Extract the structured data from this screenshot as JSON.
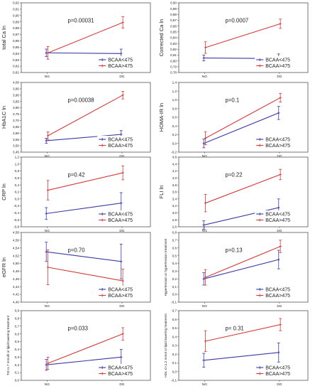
{
  "colors": {
    "blue": "#3a3aa8",
    "red": "#d43a3a",
    "grid": "#c7c7c7",
    "axis": "#555555",
    "text": "#222222"
  },
  "legend_labels": [
    "BCAA<475",
    "BCAA>475"
  ],
  "chart_data": [
    {
      "type": "line",
      "ylabel": "total Ca ln",
      "p_label": "p=0.00031",
      "x": [
        "NG",
        "DG"
      ],
      "ylim": [
        0.81,
        0.92
      ],
      "yticks": [
        0.81,
        0.82,
        0.83,
        0.84,
        0.85,
        0.86,
        0.87,
        0.88,
        0.89,
        0.9,
        0.91,
        0.92
      ],
      "ytick_labels": [
        "0,81",
        "0,82",
        "0,83",
        "0,84",
        "0,85",
        "0,86",
        "0,87",
        "0,88",
        "0,89",
        "0,90",
        "0,91",
        "0,92"
      ],
      "grid": false,
      "legend": "bottom-right",
      "series": [
        {
          "name": "BCAA<475",
          "values": [
            0.841,
            0.84
          ],
          "err": [
            0.006,
            0.007
          ]
        },
        {
          "name": "BCAA>475",
          "values": [
            0.841,
            0.889
          ],
          "err": [
            0.01,
            0.009
          ]
        }
      ]
    },
    {
      "type": "line",
      "ylabel": "Corrected Ca ln",
      "p_label": "p=0.0007",
      "x": [
        "NG",
        "DG"
      ],
      "ylim": [
        0.78,
        0.9
      ],
      "yticks": [
        0.78,
        0.79,
        0.8,
        0.81,
        0.82,
        0.83,
        0.84,
        0.85,
        0.86,
        0.87,
        0.88,
        0.89,
        0.9
      ],
      "ytick_labels": [
        "0,78",
        "0,79",
        "0,80",
        "0,81",
        "0,82",
        "0,83",
        "0,84",
        "0,85",
        "0,86",
        "0,87",
        "0,88",
        "0,89",
        "0,90"
      ],
      "grid": false,
      "legend": "bottom-right",
      "series": [
        {
          "name": "BCAA<475",
          "values": [
            0.805,
            0.804
          ],
          "err": [
            0.005,
            0.008
          ]
        },
        {
          "name": "BCAA>475",
          "values": [
            0.823,
            0.864
          ],
          "err": [
            0.01,
            0.008
          ]
        }
      ]
    },
    {
      "type": "line",
      "ylabel": "HbA1C ln",
      "p_label": "p=0.00038",
      "x": [
        "NG",
        "DG"
      ],
      "ylim": [
        3.45,
        4.0
      ],
      "yticks": [
        3.45,
        3.5,
        3.55,
        3.6,
        3.65,
        3.7,
        3.75,
        3.8,
        3.85,
        3.9,
        3.95,
        4.0
      ],
      "ytick_labels": [
        "3,45",
        "3,50",
        "3,55",
        "3,60",
        "3,65",
        "3,70",
        "3,75",
        "3,80",
        "3,85",
        "3,90",
        "3,95",
        "4,00"
      ],
      "grid": false,
      "legend": "bottom-right",
      "series": [
        {
          "name": "BCAA<475",
          "values": [
            3.54,
            3.59
          ],
          "err": [
            0.02,
            0.03
          ]
        },
        {
          "name": "BCAA>475",
          "values": [
            3.58,
            3.9
          ],
          "err": [
            0.03,
            0.03
          ]
        }
      ]
    },
    {
      "type": "line",
      "ylabel": "HOMA-IR ln",
      "p_label": "p=0.1",
      "x": [
        "NG",
        "DG"
      ],
      "ylim": [
        -0.2,
        1.4
      ],
      "yticks": [
        -0.2,
        0.0,
        0.2,
        0.4,
        0.6,
        0.8,
        1.0,
        1.2,
        1.4
      ],
      "ytick_labels": [
        "-0,2",
        "0,0",
        "0,2",
        "0,4",
        "0,6",
        "0,8",
        "1,0",
        "1,2",
        "1,4"
      ],
      "grid": false,
      "legend": "bottom-right",
      "series": [
        {
          "name": "BCAA<475",
          "values": [
            0.0,
            0.7
          ],
          "err": [
            0.1,
            0.15
          ]
        },
        {
          "name": "BCAA>475",
          "values": [
            0.12,
            1.05
          ],
          "err": [
            0.15,
            0.1
          ]
        }
      ]
    },
    {
      "type": "line",
      "ylabel": "CRP ln",
      "p_label": "p=0.42",
      "x": [
        "NG",
        "DG"
      ],
      "ylim": [
        -0.8,
        1.2
      ],
      "yticks": [
        -0.8,
        -0.6,
        -0.4,
        -0.2,
        0.0,
        0.2,
        0.4,
        0.6,
        0.8,
        1.0,
        1.2
      ],
      "ytick_labels": [
        "-0,8",
        "-0,6",
        "-0,4",
        "-0,2",
        "0,0",
        "0,2",
        "0,4",
        "0,6",
        "0,8",
        "1,0",
        "1,2"
      ],
      "grid": false,
      "legend": "bottom-right",
      "series": [
        {
          "name": "BCAA<475",
          "values": [
            -0.42,
            -0.12
          ],
          "err": [
            0.17,
            0.3
          ]
        },
        {
          "name": "BCAA>475",
          "values": [
            0.25,
            0.75
          ],
          "err": [
            0.28,
            0.2
          ]
        }
      ]
    },
    {
      "type": "line",
      "ylabel": "FLI ln",
      "p_label": "p=0.22",
      "x": [
        "NG",
        "DG"
      ],
      "ylim": [
        2.6,
        4.6
      ],
      "yticks": [
        2.6,
        2.8,
        3.0,
        3.2,
        3.4,
        3.6,
        3.8,
        4.0,
        4.2,
        4.4,
        4.6
      ],
      "ytick_labels": [
        "2,6",
        "2,8",
        "3,0",
        "3,2",
        "3,4",
        "3,6",
        "3,8",
        "4,0",
        "4,2",
        "4,4",
        "4,6"
      ],
      "grid": false,
      "legend": "bottom-right",
      "series": [
        {
          "name": "BCAA<475",
          "values": [
            2.65,
            3.15
          ],
          "err": [
            0.12,
            0.25
          ]
        },
        {
          "name": "BCAA>475",
          "values": [
            3.28,
            4.1
          ],
          "err": [
            0.25,
            0.15
          ]
        }
      ]
    },
    {
      "type": "line",
      "ylabel": "eGFR ln",
      "p_label": "p=0.70",
      "x": [
        "NG",
        "DG"
      ],
      "ylim": [
        4.4,
        4.58
      ],
      "yticks": [
        4.4,
        4.42,
        4.44,
        4.46,
        4.48,
        4.5,
        4.52,
        4.54,
        4.56,
        4.58
      ],
      "ytick_labels": [
        "4,40",
        "4,42",
        "4,44",
        "4,46",
        "4,48",
        "4,50",
        "4,52",
        "4,54",
        "4,56",
        "4,58"
      ],
      "grid": false,
      "legend": "bottom-right",
      "series": [
        {
          "name": "BCAA<475",
          "values": [
            4.53,
            4.505
          ],
          "err": [
            0.025,
            0.045
          ]
        },
        {
          "name": "BCAA>475",
          "values": [
            4.49,
            4.455
          ],
          "err": [
            0.045,
            0.03
          ]
        }
      ]
    },
    {
      "type": "line",
      "ylabel": "Hypertension or hypertension treatment",
      "p_label": "p=0.13",
      "x": [
        "NG",
        "DG"
      ],
      "ylim": [
        -0.1,
        0.8
      ],
      "yticks": [
        -0.1,
        0.0,
        0.1,
        0.2,
        0.3,
        0.4,
        0.5,
        0.6,
        0.7,
        0.8
      ],
      "ytick_labels": [
        "-0,1",
        "0,0",
        "0,1",
        "0,2",
        "0,3",
        "0,4",
        "0,5",
        "0,6",
        "0,7",
        "0,8"
      ],
      "grid": false,
      "legend": "bottom-right",
      "series": [
        {
          "name": "BCAA<475",
          "values": [
            0.2,
            0.45
          ],
          "err": [
            0.08,
            0.12
          ]
        },
        {
          "name": "BCAA>475",
          "values": [
            0.22,
            0.62
          ],
          "err": [
            0.1,
            0.08
          ]
        }
      ]
    },
    {
      "type": "line",
      "ylabel": "TG>1.7 mmol/l or lipid lowering treatment",
      "p_label": "p=0.033",
      "x": [
        "NG",
        "DG"
      ],
      "ylim": [
        0.0,
        0.9
      ],
      "yticks": [
        0.0,
        0.1,
        0.2,
        0.3,
        0.4,
        0.5,
        0.6,
        0.7,
        0.8,
        0.9
      ],
      "ytick_labels": [
        "0,0",
        "0,1",
        "0,2",
        "0,3",
        "0,4",
        "0,5",
        "0,6",
        "0,7",
        "0,8",
        "0,9"
      ],
      "grid": false,
      "legend": "bottom-right",
      "series": [
        {
          "name": "BCAA<475",
          "values": [
            0.2,
            0.3
          ],
          "err": [
            0.07,
            0.1
          ]
        },
        {
          "name": "BCAA>475",
          "values": [
            0.22,
            0.6
          ],
          "err": [
            0.08,
            0.08
          ]
        }
      ]
    },
    {
      "type": "line",
      "ylabel": "HDL-C<1.2 mmol or lipid lowering treatment",
      "p_label": "p= 0.31",
      "x": [
        "NG",
        "DG"
      ],
      "ylim": [
        -0.1,
        0.7
      ],
      "yticks": [
        -0.1,
        0.0,
        0.1,
        0.2,
        0.3,
        0.4,
        0.5,
        0.6,
        0.7
      ],
      "ytick_labels": [
        "-0,1",
        "0,0",
        "0,1",
        "0,2",
        "0,3",
        "0,4",
        "0,5",
        "0,6",
        "0,7"
      ],
      "grid": false,
      "legend": "bottom-right",
      "series": [
        {
          "name": "BCAA<475",
          "values": [
            0.13,
            0.22
          ],
          "err": [
            0.08,
            0.11
          ]
        },
        {
          "name": "BCAA>475",
          "values": [
            0.35,
            0.54
          ],
          "err": [
            0.12,
            0.07
          ]
        }
      ]
    }
  ]
}
